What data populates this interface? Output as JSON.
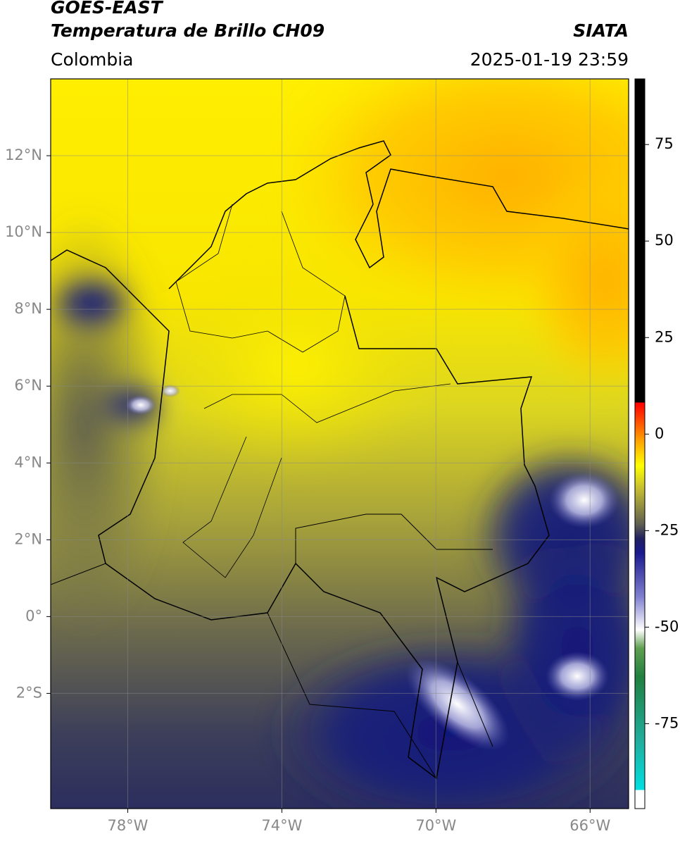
{
  "header": {
    "title": "GOES-EAST",
    "subtitle": "Temperatura de Brillo CH09",
    "org": "SIATA",
    "region": "Colombia",
    "datetime": "2025-01-19 23:59"
  },
  "map": {
    "xlim": [
      -80,
      -65
    ],
    "ylim": [
      -5,
      14
    ],
    "xticks": [
      {
        "value": -78,
        "label": "78°W"
      },
      {
        "value": -74,
        "label": "74°W"
      },
      {
        "value": -70,
        "label": "70°W"
      },
      {
        "value": -66,
        "label": "66°W"
      }
    ],
    "yticks": [
      {
        "value": 12,
        "label": "12°N"
      },
      {
        "value": 10,
        "label": "10°N"
      },
      {
        "value": 8,
        "label": "8°N"
      },
      {
        "value": 6,
        "label": "6°N"
      },
      {
        "value": 4,
        "label": "4°N"
      },
      {
        "value": 2,
        "label": "2°N"
      },
      {
        "value": 0,
        "label": "0°"
      },
      {
        "value": -2,
        "label": "2°S"
      }
    ]
  },
  "colorbar": {
    "lim": [
      -97,
      92
    ],
    "ticks": [
      75,
      50,
      25,
      0,
      -25,
      -50,
      -75
    ]
  }
}
